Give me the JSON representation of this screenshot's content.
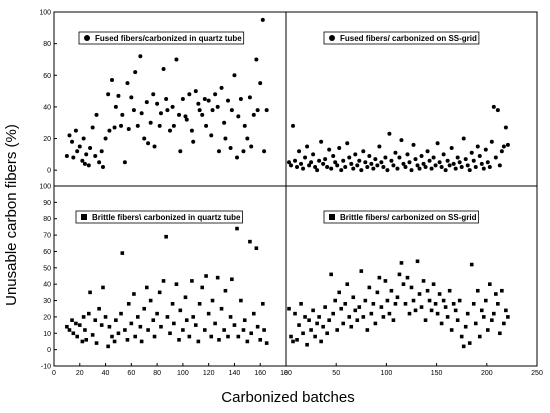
{
  "figure": {
    "ylabel": "Unusable carbon fibers (%)",
    "xlabel": "Carbonized batches"
  },
  "chart_data": [
    {
      "id": "top-left",
      "type": "scatter",
      "legend": "Fused fibers/carbonized in quartz tube",
      "marker": "circle",
      "xlim": [
        0,
        180
      ],
      "ylim": [
        -10,
        100
      ],
      "yticks": [
        0,
        20,
        40,
        60,
        80,
        100
      ],
      "xticks": [],
      "x": [
        10,
        12,
        14,
        15,
        17,
        18,
        20,
        22,
        23,
        24,
        25,
        27,
        28,
        30,
        32,
        33,
        35,
        37,
        38,
        40,
        42,
        43,
        45,
        47,
        48,
        50,
        52,
        53,
        55,
        57,
        58,
        60,
        62,
        63,
        65,
        67,
        68,
        70,
        72,
        73,
        75,
        77,
        78,
        80,
        82,
        83,
        85,
        87,
        88,
        90,
        92,
        93,
        95,
        97,
        98,
        100,
        102,
        103,
        105,
        107,
        108,
        110,
        112,
        113,
        115,
        117,
        118,
        120,
        122,
        123,
        125,
        127,
        128,
        130,
        132,
        133,
        135,
        137,
        138,
        140,
        142,
        143,
        145,
        147,
        148,
        150,
        152,
        153,
        155,
        157,
        158,
        160,
        162,
        163,
        165
      ],
      "y": [
        9,
        22,
        18,
        8,
        25,
        12,
        15,
        6,
        20,
        4,
        10,
        3,
        14,
        27,
        9,
        35,
        5,
        12,
        2,
        20,
        48,
        25,
        57,
        27,
        40,
        47,
        28,
        35,
        5,
        55,
        26,
        46,
        38,
        62,
        28,
        72,
        36,
        20,
        43,
        17,
        30,
        48,
        15,
        42,
        28,
        36,
        64,
        45,
        38,
        25,
        40,
        28,
        70,
        35,
        12,
        45,
        34,
        32,
        48,
        25,
        18,
        50,
        42,
        38,
        35,
        45,
        28,
        44,
        22,
        38,
        48,
        40,
        12,
        52,
        30,
        20,
        44,
        14,
        38,
        60,
        8,
        34,
        45,
        12,
        28,
        20,
        46,
        15,
        35,
        70,
        38,
        55,
        95,
        12,
        38
      ]
    },
    {
      "id": "top-right",
      "type": "scatter",
      "legend": "Fused fibers/ carbonized on SS-grid",
      "marker": "circle",
      "xlim": [
        0,
        250
      ],
      "ylim": [
        -10,
        100
      ],
      "yticks": [],
      "xticks": [],
      "x": [
        3,
        5,
        7,
        9,
        11,
        13,
        15,
        17,
        19,
        21,
        23,
        25,
        27,
        29,
        31,
        33,
        35,
        37,
        39,
        41,
        43,
        45,
        47,
        49,
        51,
        53,
        55,
        57,
        59,
        61,
        63,
        65,
        67,
        69,
        71,
        73,
        75,
        77,
        79,
        81,
        83,
        85,
        87,
        89,
        91,
        93,
        95,
        97,
        99,
        101,
        103,
        105,
        107,
        109,
        111,
        113,
        115,
        117,
        119,
        121,
        123,
        125,
        127,
        129,
        131,
        133,
        135,
        137,
        139,
        141,
        143,
        145,
        147,
        149,
        151,
        153,
        155,
        157,
        159,
        161,
        163,
        165,
        167,
        169,
        171,
        173,
        175,
        177,
        179,
        181,
        183,
        185,
        187,
        189,
        191,
        193,
        195,
        197,
        199,
        201,
        203,
        205,
        207,
        209,
        211,
        213,
        215,
        217,
        219,
        221
      ],
      "y": [
        5,
        3,
        28,
        6,
        2,
        12,
        4,
        1,
        8,
        15,
        3,
        5,
        10,
        2,
        0,
        6,
        18,
        4,
        7,
        2,
        13,
        1,
        9,
        5,
        3,
        14,
        0,
        6,
        2,
        17,
        8,
        4,
        1,
        10,
        3,
        6,
        0,
        12,
        5,
        2,
        9,
        4,
        1,
        7,
        3,
        15,
        5,
        2,
        8,
        0,
        23,
        6,
        3,
        11,
        1,
        8,
        19,
        4,
        2,
        10,
        5,
        0,
        16,
        7,
        3,
        1,
        9,
        4,
        2,
        12,
        6,
        1,
        8,
        3,
        17,
        5,
        2,
        10,
        0,
        6,
        3,
        14,
        4,
        1,
        8,
        5,
        2,
        20,
        7,
        3,
        0,
        11,
        6,
        2,
        15,
        9,
        4,
        1,
        13,
        5,
        2,
        18,
        40,
        8,
        38,
        3,
        12,
        15,
        27,
        16
      ]
    },
    {
      "id": "bottom-left",
      "type": "scatter",
      "legend": "Brittle fibers\\ carbonized in quartz tube",
      "marker": "square",
      "xlim": [
        0,
        180
      ],
      "ylim": [
        -10,
        100
      ],
      "yticks": [
        -10,
        0,
        10,
        20,
        30,
        40,
        50,
        60,
        70,
        80,
        90,
        100
      ],
      "xticks": [
        0,
        20,
        40,
        60,
        80,
        100,
        120,
        140,
        160,
        180
      ],
      "x": [
        10,
        12,
        14,
        15,
        17,
        18,
        20,
        22,
        23,
        24,
        25,
        27,
        28,
        30,
        32,
        33,
        35,
        37,
        38,
        40,
        42,
        43,
        45,
        47,
        48,
        50,
        52,
        53,
        55,
        57,
        58,
        60,
        62,
        63,
        65,
        67,
        68,
        70,
        72,
        73,
        75,
        77,
        78,
        80,
        82,
        83,
        85,
        87,
        88,
        90,
        92,
        93,
        95,
        97,
        98,
        100,
        102,
        103,
        105,
        107,
        108,
        110,
        112,
        113,
        115,
        117,
        118,
        120,
        122,
        123,
        125,
        127,
        128,
        130,
        132,
        133,
        135,
        137,
        138,
        140,
        142,
        143,
        145,
        147,
        148,
        150,
        152,
        153,
        155,
        157,
        158,
        160,
        162,
        163,
        165
      ],
      "y": [
        14,
        12,
        18,
        10,
        16,
        8,
        15,
        5,
        20,
        12,
        6,
        22,
        35,
        9,
        18,
        4,
        25,
        15,
        38,
        20,
        2,
        14,
        8,
        5,
        18,
        10,
        22,
        59,
        12,
        6,
        28,
        16,
        34,
        8,
        20,
        14,
        5,
        25,
        38,
        12,
        30,
        18,
        8,
        22,
        35,
        14,
        42,
        69,
        20,
        10,
        28,
        16,
        40,
        6,
        24,
        12,
        32,
        18,
        8,
        42,
        20,
        15,
        5,
        28,
        38,
        12,
        45,
        22,
        8,
        30,
        16,
        44,
        6,
        25,
        12,
        36,
        8,
        20,
        43,
        15,
        74,
        8,
        30,
        12,
        18,
        5,
        66,
        10,
        22,
        62,
        14,
        6,
        28,
        12,
        4
      ]
    },
    {
      "id": "bottom-right",
      "type": "scatter",
      "legend": "Brittle fibers/ carbonized on SS-grid",
      "marker": "square",
      "xlim": [
        0,
        250
      ],
      "ylim": [
        -10,
        100
      ],
      "yticks": [],
      "xticks": [
        0,
        50,
        100,
        150,
        200,
        250
      ],
      "x": [
        3,
        5,
        7,
        9,
        11,
        13,
        15,
        17,
        19,
        21,
        23,
        25,
        27,
        29,
        31,
        33,
        35,
        37,
        39,
        41,
        43,
        45,
        47,
        49,
        51,
        53,
        55,
        57,
        59,
        61,
        63,
        65,
        67,
        69,
        71,
        73,
        75,
        77,
        79,
        81,
        83,
        85,
        87,
        89,
        91,
        93,
        95,
        97,
        99,
        101,
        103,
        105,
        107,
        109,
        111,
        113,
        115,
        117,
        119,
        121,
        123,
        125,
        127,
        129,
        131,
        133,
        135,
        137,
        139,
        141,
        143,
        145,
        147,
        149,
        151,
        153,
        155,
        157,
        159,
        161,
        163,
        165,
        167,
        169,
        171,
        173,
        175,
        177,
        179,
        181,
        183,
        185,
        187,
        189,
        191,
        193,
        195,
        197,
        199,
        201,
        203,
        205,
        207,
        209,
        211,
        213,
        215,
        217,
        219,
        221
      ],
      "y": [
        25,
        8,
        5,
        22,
        6,
        15,
        28,
        10,
        20,
        3,
        18,
        12,
        24,
        8,
        16,
        20,
        5,
        14,
        26,
        10,
        18,
        46,
        22,
        30,
        12,
        35,
        25,
        16,
        28,
        40,
        20,
        14,
        32,
        24,
        18,
        26,
        48,
        20,
        30,
        12,
        38,
        22,
        28,
        16,
        35,
        44,
        26,
        20,
        42,
        30,
        22,
        36,
        18,
        28,
        32,
        46,
        53,
        40,
        28,
        44,
        22,
        38,
        30,
        24,
        54,
        34,
        26,
        42,
        18,
        36,
        30,
        24,
        40,
        28,
        22,
        34,
        16,
        30,
        26,
        20,
        36,
        12,
        28,
        24,
        18,
        30,
        8,
        2,
        14,
        22,
        4,
        52,
        28,
        16,
        36,
        8,
        24,
        20,
        30,
        12,
        40,
        18,
        22,
        34,
        28,
        10,
        36,
        16,
        24,
        20
      ]
    }
  ]
}
